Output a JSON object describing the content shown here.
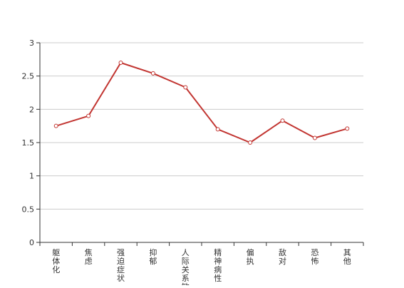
{
  "chart_data": {
    "type": "line",
    "categories": [
      [
        "躯",
        "体",
        "化"
      ],
      [
        "焦",
        "虑"
      ],
      [
        "强",
        "迫",
        "症",
        "状"
      ],
      [
        "抑",
        "郁"
      ],
      [
        "人",
        "际",
        "关",
        "系",
        "敏"
      ],
      [
        "精",
        "神",
        "病",
        "性"
      ],
      [
        "偏",
        "执"
      ],
      [
        "敌",
        "对"
      ],
      [
        "恐",
        "怖"
      ],
      [
        "其",
        "他"
      ]
    ],
    "values": [
      1.75,
      1.9,
      2.7,
      2.54,
      2.33,
      1.7,
      1.5,
      1.83,
      1.57,
      1.71
    ],
    "ylim": [
      0,
      3
    ],
    "yticks": [
      0,
      0.5,
      1,
      1.5,
      2,
      2.5,
      3
    ],
    "ytick_labels": [
      "0",
      "0.5",
      "1",
      "1.5",
      "2",
      "2.5",
      "3"
    ],
    "grid": true,
    "colors": {
      "line": "#c23531",
      "marker_fill": "#ffffff",
      "grid": "#cccccc",
      "axis": "#333333",
      "text": "#333333"
    }
  }
}
